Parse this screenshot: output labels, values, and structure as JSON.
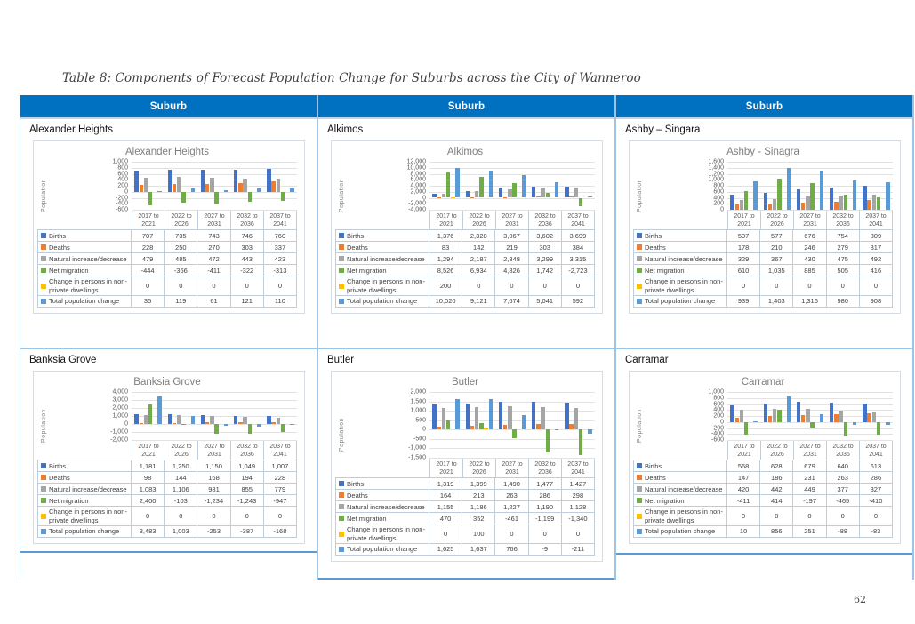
{
  "page": {
    "title": "Table 8: Components of Forecast Population Change for Suburbs across the City of Wanneroo",
    "page_number": "62"
  },
  "table": {
    "header_label": "Suburb",
    "header_color": "#0070C0",
    "accent_border_color": "#5B9BD5",
    "divider_color": "#9DC3E6"
  },
  "chart_data": [
    {
      "type": "bar",
      "cell_label": "Alexander Heights",
      "title": "Alexander Heights",
      "ylabel": "Population",
      "ylim": [
        -600,
        1000
      ],
      "ytick_step": 200,
      "grid": true,
      "legend": "data-table-below-plot",
      "categories": [
        "2017 to 2021",
        "2022 to 2026",
        "2027 to 2031",
        "2032 to 2036",
        "2037 to 2041"
      ],
      "series": [
        {
          "name": "Births",
          "color": "#4472C4",
          "values": [
            707,
            735,
            743,
            746,
            760
          ]
        },
        {
          "name": "Deaths",
          "color": "#ED7D31",
          "values": [
            228,
            250,
            270,
            303,
            337
          ]
        },
        {
          "name": "Natural increase/decrease",
          "color": "#A5A5A5",
          "values": [
            479,
            485,
            472,
            443,
            423
          ]
        },
        {
          "name": "Net migration",
          "color": "#70AD47",
          "values": [
            -444,
            -366,
            -411,
            -322,
            -313
          ]
        },
        {
          "name": "Change in persons in non-private dwellings",
          "color": "#FFC000",
          "values": [
            0,
            0,
            0,
            0,
            0
          ]
        },
        {
          "name": "Total population change",
          "color": "#5B9BD5",
          "values": [
            35,
            119,
            61,
            121,
            110
          ]
        }
      ]
    },
    {
      "type": "bar",
      "cell_label": "Alkimos",
      "title": "Alkimos",
      "ylabel": "Population",
      "ylim": [
        -4000,
        12000
      ],
      "ytick_step": 2000,
      "grid": true,
      "legend": "data-table-below-plot",
      "categories": [
        "2017 to 2021",
        "2022 to 2026",
        "2027 to 2031",
        "2032 to 2036",
        "2037 to 2041"
      ],
      "series": [
        {
          "name": "Births",
          "color": "#4472C4",
          "values": [
            1376,
            2328,
            3067,
            3602,
            3699
          ]
        },
        {
          "name": "Deaths",
          "color": "#ED7D31",
          "values": [
            83,
            142,
            219,
            303,
            384
          ]
        },
        {
          "name": "Natural increase/decrease",
          "color": "#A5A5A5",
          "values": [
            1294,
            2187,
            2848,
            3299,
            3315
          ]
        },
        {
          "name": "Net migration",
          "color": "#70AD47",
          "values": [
            8526,
            6934,
            4826,
            1742,
            -2723
          ]
        },
        {
          "name": "Change in persons in non-private dwellings",
          "color": "#FFC000",
          "values": [
            200,
            0,
            0,
            0,
            0
          ]
        },
        {
          "name": "Total population change",
          "color": "#5B9BD5",
          "values": [
            10020,
            9121,
            7674,
            5041,
            592
          ]
        }
      ]
    },
    {
      "type": "bar",
      "cell_label": "Ashby – Singara",
      "title": "Ashby - Sinagra",
      "ylabel": "Population",
      "ylim": [
        0,
        1600
      ],
      "ytick_step": 200,
      "grid": true,
      "legend": "data-table-below-plot",
      "categories": [
        "2017 to 2021",
        "2022 to 2026",
        "2027 to 2031",
        "2032 to 2036",
        "2037 to 2041"
      ],
      "series": [
        {
          "name": "Births",
          "color": "#4472C4",
          "values": [
            507,
            577,
            676,
            754,
            809
          ]
        },
        {
          "name": "Deaths",
          "color": "#ED7D31",
          "values": [
            178,
            210,
            246,
            279,
            317
          ]
        },
        {
          "name": "Natural increase/decrease",
          "color": "#A5A5A5",
          "values": [
            329,
            367,
            430,
            475,
            492
          ]
        },
        {
          "name": "Net migration",
          "color": "#70AD47",
          "values": [
            610,
            1035,
            885,
            505,
            416
          ]
        },
        {
          "name": "Change in persons in non-private dwellings",
          "color": "#FFC000",
          "values": [
            0,
            0,
            0,
            0,
            0
          ]
        },
        {
          "name": "Total population change",
          "color": "#5B9BD5",
          "values": [
            939,
            1403,
            1316,
            980,
            908
          ]
        }
      ]
    },
    {
      "type": "bar",
      "cell_label": "Banksia Grove",
      "title": "Banksia Grove",
      "ylabel": "Population",
      "ylim": [
        -2000,
        4000
      ],
      "ytick_step": 1000,
      "grid": true,
      "legend": "data-table-below-plot",
      "categories": [
        "2017 to 2021",
        "2022 to 2026",
        "2027 to 2031",
        "2032 to 2036",
        "2037 to 2041"
      ],
      "series": [
        {
          "name": "Births",
          "color": "#4472C4",
          "values": [
            1181,
            1250,
            1150,
            1049,
            1007
          ]
        },
        {
          "name": "Deaths",
          "color": "#ED7D31",
          "values": [
            98,
            144,
            168,
            194,
            228
          ]
        },
        {
          "name": "Natural increase/decrease",
          "color": "#A5A5A5",
          "values": [
            1083,
            1106,
            981,
            855,
            779
          ]
        },
        {
          "name": "Net migration",
          "color": "#70AD47",
          "values": [
            2400,
            -103,
            -1234,
            -1243,
            -947
          ]
        },
        {
          "name": "Change in persons in non-private dwellings",
          "color": "#FFC000",
          "values": [
            0,
            0,
            0,
            0,
            0
          ]
        },
        {
          "name": "Total population change",
          "color": "#5B9BD5",
          "values": [
            3483,
            1003,
            -253,
            -387,
            -168
          ]
        }
      ]
    },
    {
      "type": "bar",
      "cell_label": "Butler",
      "title": "Butler",
      "ylabel": "Population",
      "ylim": [
        -1500,
        2000
      ],
      "ytick_step": 500,
      "grid": true,
      "legend": "data-table-below-plot",
      "categories": [
        "2017 to 2021",
        "2022 to 2026",
        "2027 to 2031",
        "2032 to 2036",
        "2037 to 2041"
      ],
      "series": [
        {
          "name": "Births",
          "color": "#4472C4",
          "values": [
            1319,
            1399,
            1490,
            1477,
            1427
          ]
        },
        {
          "name": "Deaths",
          "color": "#ED7D31",
          "values": [
            164,
            213,
            263,
            286,
            298
          ]
        },
        {
          "name": "Natural increase/decrease",
          "color": "#A5A5A5",
          "values": [
            1155,
            1186,
            1227,
            1190,
            1128
          ]
        },
        {
          "name": "Net migration",
          "color": "#70AD47",
          "values": [
            470,
            352,
            -461,
            -1199,
            -1340
          ]
        },
        {
          "name": "Change in persons in non-private dwellings",
          "color": "#FFC000",
          "values": [
            0,
            100,
            0,
            0,
            0
          ]
        },
        {
          "name": "Total population change",
          "color": "#5B9BD5",
          "values": [
            1625,
            1637,
            766,
            -9,
            -211
          ]
        }
      ]
    },
    {
      "type": "bar",
      "cell_label": "Carramar",
      "title": "Carramar",
      "ylabel": "Population",
      "ylim": [
        -600,
        1000
      ],
      "ytick_step": 200,
      "grid": true,
      "legend": "data-table-below-plot",
      "categories": [
        "2017 to 2021",
        "2022 to 2026",
        "2027 to 2031",
        "2032 to 2036",
        "2037 to 2041"
      ],
      "series": [
        {
          "name": "Births",
          "color": "#4472C4",
          "values": [
            568,
            628,
            679,
            640,
            613
          ]
        },
        {
          "name": "Deaths",
          "color": "#ED7D31",
          "values": [
            147,
            186,
            231,
            263,
            286
          ]
        },
        {
          "name": "Natural increase/decrease",
          "color": "#A5A5A5",
          "values": [
            420,
            442,
            449,
            377,
            327
          ]
        },
        {
          "name": "Net migration",
          "color": "#70AD47",
          "values": [
            -411,
            414,
            -197,
            -465,
            -410
          ]
        },
        {
          "name": "Change in persons in non-private dwellings",
          "color": "#FFC000",
          "values": [
            0,
            0,
            0,
            0,
            0
          ]
        },
        {
          "name": "Total population change",
          "color": "#5B9BD5",
          "values": [
            10,
            856,
            251,
            -88,
            -83
          ]
        }
      ]
    }
  ]
}
